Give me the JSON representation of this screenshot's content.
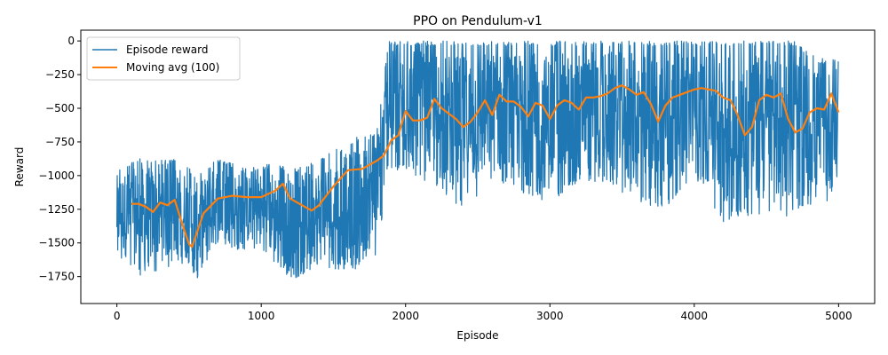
{
  "chart_data": {
    "type": "line",
    "title": "PPO on Pendulum-v1",
    "xlabel": "Episode",
    "ylabel": "Reward",
    "xlim": [
      -250,
      5250
    ],
    "ylim": [
      -1950,
      80
    ],
    "xticks": [
      0,
      1000,
      2000,
      3000,
      4000,
      5000
    ],
    "yticks": [
      0,
      -250,
      -500,
      -750,
      -1000,
      -1250,
      -1500,
      -1750
    ],
    "grid": false,
    "legend_position": "top-left",
    "series": [
      {
        "name": "Episode reward",
        "color": "#1f77b4",
        "kind": "raw",
        "envelope": {
          "x": [
            0,
            150,
            300,
            450,
            550,
            700,
            900,
            1100,
            1200,
            1350,
            1500,
            1650,
            1800,
            1880,
            2000,
            2200,
            2400,
            2600,
            2800,
            3000,
            3200,
            3400,
            3600,
            3800,
            4000,
            4200,
            4300,
            4500,
            4700,
            4850,
            5000
          ],
          "upper": [
            -950,
            -870,
            -880,
            -880,
            -1000,
            -870,
            -950,
            -900,
            -960,
            -900,
            -820,
            -720,
            -680,
            0,
            0,
            0,
            0,
            0,
            0,
            0,
            0,
            0,
            0,
            0,
            0,
            0,
            0,
            0,
            0,
            -130,
            -130
          ],
          "lower": [
            -1600,
            -1750,
            -1700,
            -1650,
            -1780,
            -1550,
            -1550,
            -1650,
            -1780,
            -1700,
            -1700,
            -1700,
            -1600,
            -1000,
            -950,
            -1100,
            -1250,
            -1050,
            -1150,
            -1200,
            -1050,
            -1050,
            -1200,
            -1250,
            -1000,
            -1350,
            -1300,
            -1300,
            -1300,
            -1200,
            -1200
          ]
        },
        "note": "dense per-episode line, 5000 points"
      },
      {
        "name": "Moving avg (100)",
        "color": "#ff7f0e",
        "kind": "smoothed",
        "x": [
          100,
          150,
          200,
          250,
          300,
          350,
          400,
          450,
          500,
          520,
          600,
          700,
          800,
          900,
          1000,
          1100,
          1150,
          1200,
          1300,
          1350,
          1400,
          1500,
          1550,
          1600,
          1700,
          1750,
          1800,
          1850,
          1900,
          1950,
          2000,
          2050,
          2100,
          2150,
          2200,
          2250,
          2300,
          2350,
          2400,
          2450,
          2500,
          2550,
          2600,
          2650,
          2700,
          2750,
          2800,
          2850,
          2900,
          2950,
          3000,
          3050,
          3100,
          3150,
          3200,
          3250,
          3300,
          3350,
          3400,
          3450,
          3500,
          3550,
          3600,
          3650,
          3700,
          3750,
          3800,
          3850,
          3900,
          3950,
          4000,
          4050,
          4100,
          4150,
          4200,
          4250,
          4300,
          4350,
          4400,
          4450,
          4500,
          4550,
          4600,
          4650,
          4700,
          4750,
          4800,
          4850,
          4900,
          4950,
          5000
        ],
        "y": [
          -1210,
          -1210,
          -1230,
          -1270,
          -1200,
          -1220,
          -1180,
          -1350,
          -1510,
          -1530,
          -1280,
          -1170,
          -1150,
          -1160,
          -1160,
          -1110,
          -1060,
          -1170,
          -1230,
          -1260,
          -1220,
          -1080,
          -1020,
          -960,
          -950,
          -920,
          -890,
          -850,
          -740,
          -700,
          -520,
          -590,
          -590,
          -570,
          -430,
          -500,
          -540,
          -580,
          -640,
          -600,
          -530,
          -440,
          -550,
          -400,
          -450,
          -450,
          -490,
          -560,
          -460,
          -480,
          -580,
          -480,
          -440,
          -460,
          -510,
          -420,
          -420,
          -410,
          -390,
          -350,
          -330,
          -360,
          -400,
          -380,
          -470,
          -600,
          -480,
          -420,
          -400,
          -380,
          -360,
          -350,
          -360,
          -370,
          -420,
          -440,
          -550,
          -700,
          -640,
          -440,
          -400,
          -420,
          -390,
          -580,
          -680,
          -650,
          -530,
          -500,
          -510,
          -390,
          -530
        ]
      }
    ]
  }
}
